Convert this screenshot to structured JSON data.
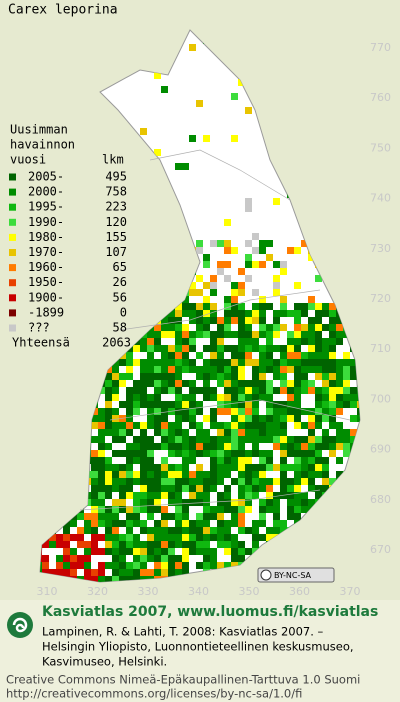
{
  "title": "Carex leporina",
  "legend": {
    "heading": [
      "Uusimman",
      "havainnon"
    ],
    "col_year": "vuosi",
    "col_count": "lkm",
    "rows": [
      {
        "label": "2005-",
        "count": "495",
        "color": "#006400"
      },
      {
        "label": "2000-",
        "count": "758",
        "color": "#008c00"
      },
      {
        "label": "1995-",
        "count": "223",
        "color": "#10b810"
      },
      {
        "label": "1990-",
        "count": "120",
        "color": "#3cdc3c"
      },
      {
        "label": "1980-",
        "count": "155",
        "color": "#ffff00"
      },
      {
        "label": "1970-",
        "count": "107",
        "color": "#e8c400"
      },
      {
        "label": "1960-",
        "count": "65",
        "color": "#ff7c00"
      },
      {
        "label": "1950-",
        "count": "26",
        "color": "#e84000"
      },
      {
        "label": "1900-",
        "count": "56",
        "color": "#c80000"
      },
      {
        "label": "-1899",
        "count": "0",
        "color": "#7c0000"
      },
      {
        "label": "???",
        "count": "58",
        "color": "#c8c8c8"
      }
    ],
    "total_label": "Yhteensä",
    "total": "2063"
  },
  "y_ticks": [
    "770",
    "760",
    "750",
    "740",
    "730",
    "720",
    "710",
    "700",
    "690",
    "680",
    "670"
  ],
  "x_ticks": [
    "310",
    "320",
    "330",
    "340",
    "350",
    "360",
    "370"
  ],
  "license_badge": "BY-NC-SA",
  "footer": {
    "headline": "Kasviatlas 2007, www.luomus.fi/kasviatlas",
    "citation": [
      "Lampinen, R. & Lahti, T. 2008: Kasviatlas 2007. –",
      "Helsingin Yliopisto, Luonnontieteellinen keskusmuseo,",
      "Kasvimuseo, Helsinki."
    ],
    "license": [
      "Creative Commons Nimeä-Epäkaupallinen-Tarttuva 1.0 Suomi",
      "http://creativecommons.org/licenses/by-nc-sa/1.0/fi"
    ]
  }
}
